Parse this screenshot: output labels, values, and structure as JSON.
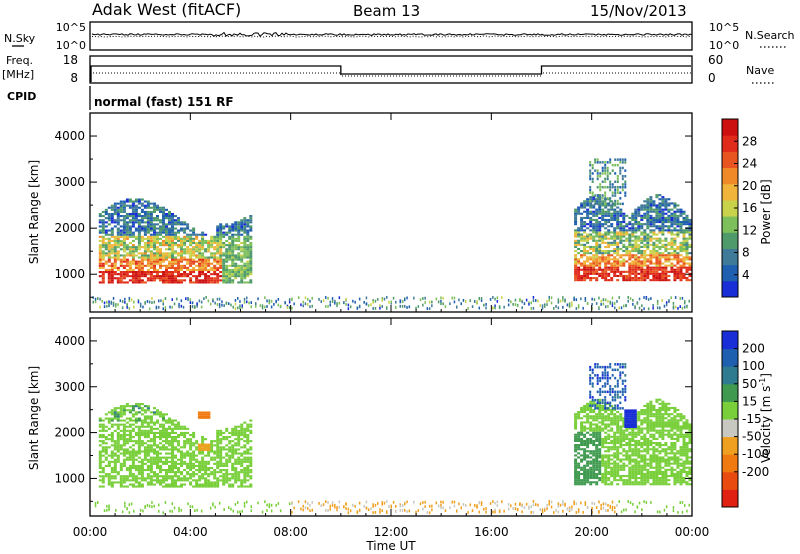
{
  "header": {
    "radar": "Adak West (fitACF)",
    "beam": "Beam 13",
    "date": "15/Nov/2013"
  },
  "top_panels": {
    "nsky_label": "N.Sky",
    "nsky_ticks": [
      "10^5",
      "10^0"
    ],
    "nsearch_label": "N.Search",
    "nsearch_ticks": [
      "10^5",
      "10^0"
    ],
    "freq_label": "Freq.",
    "freq_unit": "[MHz]",
    "freq_ticks": [
      "18",
      "8"
    ],
    "nave_label": "Nave",
    "nave_ticks": [
      "60",
      "0"
    ],
    "cpid_label": "CPID",
    "cpid_text": "normal (fast) 151 RF"
  },
  "time_axis": {
    "title": "Time UT",
    "ticks": [
      "00:00",
      "04:00",
      "08:00",
      "12:00",
      "16:00",
      "20:00",
      "00:00"
    ]
  },
  "colors": {
    "power": [
      "#1a2ed8",
      "#1f5fb0",
      "#3f7a98",
      "#4f9a6a",
      "#7dbf5a",
      "#c8d24a",
      "#f0b43a",
      "#f08a28",
      "#e85520",
      "#e02a1a",
      "#cc1010"
    ],
    "velocity": [
      "#1a2ed8",
      "#1f5fb0",
      "#2e7a8e",
      "#3f9a4f",
      "#78cf3a",
      "#c8c8c0",
      "#f0a020",
      "#f07a10",
      "#e84a10",
      "#e02010"
    ]
  },
  "chart_data": [
    {
      "type": "heatmap",
      "title": "",
      "xlabel": "Time UT",
      "ylabel": "Slant Range [km]",
      "xlim": [
        "00:00",
        "24:00"
      ],
      "ylim": [
        180,
        4500
      ],
      "y_ticks": [
        "1000",
        "2000",
        "3000",
        "4000"
      ],
      "colorbar": {
        "label": "Power [dB]",
        "ticks": [
          "4",
          "8",
          "12",
          "16",
          "20",
          "24",
          "28"
        ],
        "range": [
          0,
          32
        ]
      },
      "echo_regions": [
        {
          "t_start": 0.3,
          "t_end": 6.4,
          "range_min": 800,
          "range_max": 2500,
          "peak_power_db": 30
        },
        {
          "t_start": 19.3,
          "t_end": 24.0,
          "range_min": 850,
          "range_max": 3500,
          "peak_power_db": 30
        },
        {
          "t_start": 0.0,
          "t_end": 24.0,
          "range_min": 200,
          "range_max": 450,
          "peak_power_db": 12
        }
      ]
    },
    {
      "type": "heatmap",
      "title": "",
      "xlabel": "Time UT",
      "ylabel": "Slant Range [km]",
      "xlim": [
        "00:00",
        "24:00"
      ],
      "ylim": [
        180,
        4500
      ],
      "y_ticks": [
        "1000",
        "2000",
        "3000",
        "4000"
      ],
      "colorbar": {
        "label": "Velocity [m s^-1]",
        "ticks": [
          "200",
          "100",
          "50",
          "15",
          "-15",
          "-50",
          "-100",
          "-200"
        ]
      },
      "echo_regions": [
        {
          "t_start": 0.3,
          "t_end": 6.4,
          "range_min": 800,
          "range_max": 2600,
          "typical_velocity": 0
        },
        {
          "t_start": 19.3,
          "t_end": 24.0,
          "range_min": 850,
          "range_max": 3500,
          "typical_velocity": 20
        },
        {
          "t_start": 8.0,
          "t_end": 21.0,
          "range_min": 200,
          "range_max": 350,
          "typical_velocity": -50
        }
      ]
    }
  ]
}
